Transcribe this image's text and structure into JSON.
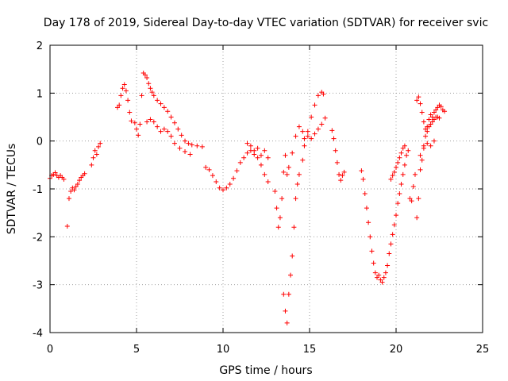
{
  "chart_data": {
    "type": "scatter",
    "title": "Day 178 of 2019, Sidereal Day-to-day VTEC variation (SDTVAR) for receiver svic",
    "xlabel": "GPS time / hours",
    "ylabel": "SDTVAR / TECUs",
    "xlim": [
      0,
      25
    ],
    "ylim": [
      -4,
      2
    ],
    "xticks": [
      0,
      5,
      10,
      15,
      20,
      25
    ],
    "yticks": [
      -4,
      -3,
      -2,
      -1,
      0,
      1,
      2
    ],
    "grid": true,
    "marker": "+",
    "color": "#ff0000",
    "series": [
      {
        "name": "SDTVAR",
        "points": [
          [
            0.0,
            -0.78
          ],
          [
            0.1,
            -0.72
          ],
          [
            0.2,
            -0.7
          ],
          [
            0.3,
            -0.66
          ],
          [
            0.4,
            -0.72
          ],
          [
            0.5,
            -0.76
          ],
          [
            0.6,
            -0.72
          ],
          [
            0.7,
            -0.76
          ],
          [
            0.8,
            -0.8
          ],
          [
            1.0,
            -1.78
          ],
          [
            1.1,
            -1.2
          ],
          [
            1.2,
            -1.05
          ],
          [
            1.3,
            -0.98
          ],
          [
            1.4,
            -1.02
          ],
          [
            1.5,
            -0.95
          ],
          [
            1.6,
            -0.9
          ],
          [
            1.7,
            -0.82
          ],
          [
            1.8,
            -0.76
          ],
          [
            1.9,
            -0.72
          ],
          [
            2.0,
            -0.68
          ],
          [
            2.4,
            -0.5
          ],
          [
            2.5,
            -0.35
          ],
          [
            2.6,
            -0.2
          ],
          [
            2.7,
            -0.28
          ],
          [
            2.8,
            -0.12
          ],
          [
            2.9,
            -0.05
          ],
          [
            3.9,
            0.7
          ],
          [
            4.0,
            0.75
          ],
          [
            4.1,
            0.95
          ],
          [
            4.2,
            1.1
          ],
          [
            4.3,
            1.18
          ],
          [
            4.4,
            1.05
          ],
          [
            4.5,
            0.85
          ],
          [
            4.6,
            0.6
          ],
          [
            4.7,
            0.42
          ],
          [
            4.9,
            0.38
          ],
          [
            5.0,
            0.25
          ],
          [
            5.1,
            0.12
          ],
          [
            5.2,
            0.35
          ],
          [
            5.3,
            0.95
          ],
          [
            5.4,
            1.42
          ],
          [
            5.5,
            1.38
          ],
          [
            5.6,
            1.32
          ],
          [
            5.7,
            1.2
          ],
          [
            5.8,
            1.1
          ],
          [
            5.9,
            1.02
          ],
          [
            6.0,
            0.95
          ],
          [
            6.2,
            0.85
          ],
          [
            6.4,
            0.78
          ],
          [
            6.6,
            0.7
          ],
          [
            6.8,
            0.62
          ],
          [
            7.0,
            0.5
          ],
          [
            7.2,
            0.38
          ],
          [
            7.4,
            0.25
          ],
          [
            7.6,
            0.12
          ],
          [
            7.8,
            0.0
          ],
          [
            8.0,
            -0.05
          ],
          [
            8.2,
            -0.08
          ],
          [
            8.5,
            -0.1
          ],
          [
            8.8,
            -0.12
          ],
          [
            5.6,
            0.4
          ],
          [
            5.8,
            0.45
          ],
          [
            6.0,
            0.4
          ],
          [
            6.2,
            0.3
          ],
          [
            6.4,
            0.2
          ],
          [
            6.6,
            0.25
          ],
          [
            6.8,
            0.2
          ],
          [
            7.0,
            0.1
          ],
          [
            7.2,
            -0.05
          ],
          [
            7.5,
            -0.15
          ],
          [
            7.8,
            -0.22
          ],
          [
            8.1,
            -0.28
          ],
          [
            9.0,
            -0.55
          ],
          [
            9.2,
            -0.6
          ],
          [
            9.4,
            -0.72
          ],
          [
            9.6,
            -0.85
          ],
          [
            9.8,
            -0.98
          ],
          [
            10.0,
            -1.02
          ],
          [
            10.2,
            -0.98
          ],
          [
            10.4,
            -0.9
          ],
          [
            10.6,
            -0.78
          ],
          [
            10.8,
            -0.62
          ],
          [
            11.0,
            -0.45
          ],
          [
            11.2,
            -0.35
          ],
          [
            11.4,
            -0.25
          ],
          [
            11.6,
            -0.2
          ],
          [
            11.8,
            -0.28
          ],
          [
            12.0,
            -0.35
          ],
          [
            12.2,
            -0.5
          ],
          [
            12.4,
            -0.7
          ],
          [
            12.6,
            -0.85
          ],
          [
            11.4,
            -0.05
          ],
          [
            11.6,
            -0.1
          ],
          [
            11.8,
            -0.2
          ],
          [
            12.0,
            -0.15
          ],
          [
            12.2,
            -0.3
          ],
          [
            12.4,
            -0.2
          ],
          [
            12.6,
            -0.35
          ],
          [
            13.0,
            -1.05
          ],
          [
            13.1,
            -1.4
          ],
          [
            13.2,
            -1.8
          ],
          [
            13.3,
            -1.6
          ],
          [
            13.4,
            -1.2
          ],
          [
            13.5,
            -0.65
          ],
          [
            13.6,
            -0.3
          ],
          [
            13.7,
            -0.7
          ],
          [
            13.5,
            -3.2
          ],
          [
            13.6,
            -3.55
          ],
          [
            13.7,
            -3.8
          ],
          [
            13.8,
            -3.2
          ],
          [
            13.9,
            -2.8
          ],
          [
            14.0,
            -2.4
          ],
          [
            14.1,
            -1.8
          ],
          [
            14.2,
            -1.2
          ],
          [
            14.3,
            -0.9
          ],
          [
            14.4,
            -0.7
          ],
          [
            13.8,
            -0.55
          ],
          [
            14.0,
            -0.25
          ],
          [
            14.2,
            0.1
          ],
          [
            14.4,
            0.3
          ],
          [
            14.6,
            0.2
          ],
          [
            14.7,
            0.05
          ],
          [
            14.9,
            0.1
          ],
          [
            15.1,
            0.05
          ],
          [
            15.3,
            0.15
          ],
          [
            15.5,
            0.25
          ],
          [
            15.7,
            0.35
          ],
          [
            15.9,
            0.48
          ],
          [
            14.6,
            -0.4
          ],
          [
            14.7,
            -0.1
          ],
          [
            14.9,
            0.2
          ],
          [
            15.1,
            0.5
          ],
          [
            15.3,
            0.75
          ],
          [
            15.5,
            0.95
          ],
          [
            15.7,
            1.02
          ],
          [
            15.8,
            0.98
          ],
          [
            16.3,
            0.22
          ],
          [
            16.4,
            0.05
          ],
          [
            16.5,
            -0.2
          ],
          [
            16.6,
            -0.45
          ],
          [
            16.7,
            -0.7
          ],
          [
            16.8,
            -0.82
          ],
          [
            16.9,
            -0.72
          ],
          [
            17.0,
            -0.65
          ],
          [
            18.0,
            -0.62
          ],
          [
            18.1,
            -0.8
          ],
          [
            18.2,
            -1.1
          ],
          [
            18.3,
            -1.4
          ],
          [
            18.4,
            -1.7
          ],
          [
            18.5,
            -2.0
          ],
          [
            18.6,
            -2.3
          ],
          [
            18.7,
            -2.55
          ],
          [
            18.8,
            -2.75
          ],
          [
            18.9,
            -2.85
          ],
          [
            19.0,
            -2.8
          ],
          [
            19.1,
            -2.9
          ],
          [
            19.2,
            -2.95
          ],
          [
            19.3,
            -2.85
          ],
          [
            19.4,
            -2.75
          ],
          [
            19.5,
            -2.6
          ],
          [
            19.6,
            -2.35
          ],
          [
            19.7,
            -2.15
          ],
          [
            19.8,
            -1.95
          ],
          [
            19.9,
            -1.75
          ],
          [
            20.0,
            -1.55
          ],
          [
            20.1,
            -1.3
          ],
          [
            20.2,
            -1.1
          ],
          [
            20.3,
            -0.9
          ],
          [
            20.4,
            -0.7
          ],
          [
            20.5,
            -0.5
          ],
          [
            20.6,
            -0.3
          ],
          [
            20.7,
            -0.2
          ],
          [
            19.7,
            -0.8
          ],
          [
            19.8,
            -0.72
          ],
          [
            19.9,
            -0.65
          ],
          [
            20.0,
            -0.55
          ],
          [
            20.1,
            -0.45
          ],
          [
            20.2,
            -0.35
          ],
          [
            20.3,
            -0.25
          ],
          [
            20.4,
            -0.15
          ],
          [
            20.5,
            -0.1
          ],
          [
            20.8,
            -1.2
          ],
          [
            20.9,
            -1.25
          ],
          [
            21.0,
            -0.95
          ],
          [
            21.1,
            -0.7
          ],
          [
            21.2,
            -1.6
          ],
          [
            21.3,
            -1.2
          ],
          [
            21.4,
            -0.6
          ],
          [
            21.5,
            -0.4
          ],
          [
            21.6,
            -0.1
          ],
          [
            21.7,
            0.1
          ],
          [
            21.8,
            0.3
          ],
          [
            21.9,
            0.45
          ],
          [
            22.0,
            0.55
          ],
          [
            22.1,
            0.5
          ],
          [
            22.2,
            0.6
          ],
          [
            22.3,
            0.65
          ],
          [
            22.4,
            0.7
          ],
          [
            22.5,
            0.75
          ],
          [
            22.6,
            0.72
          ],
          [
            22.7,
            0.65
          ],
          [
            22.8,
            0.62
          ],
          [
            21.2,
            0.85
          ],
          [
            21.3,
            0.92
          ],
          [
            21.4,
            0.78
          ],
          [
            21.5,
            0.6
          ],
          [
            21.6,
            0.4
          ],
          [
            21.7,
            0.25
          ],
          [
            21.8,
            0.2
          ],
          [
            21.9,
            0.3
          ],
          [
            22.0,
            0.35
          ],
          [
            22.1,
            0.4
          ],
          [
            22.2,
            0.45
          ],
          [
            22.3,
            0.5
          ],
          [
            22.4,
            0.5
          ],
          [
            22.5,
            0.48
          ],
          [
            21.4,
            -0.3
          ],
          [
            21.6,
            -0.15
          ],
          [
            21.8,
            -0.05
          ],
          [
            22.0,
            -0.1
          ],
          [
            22.2,
            0.0
          ]
        ]
      }
    ]
  }
}
